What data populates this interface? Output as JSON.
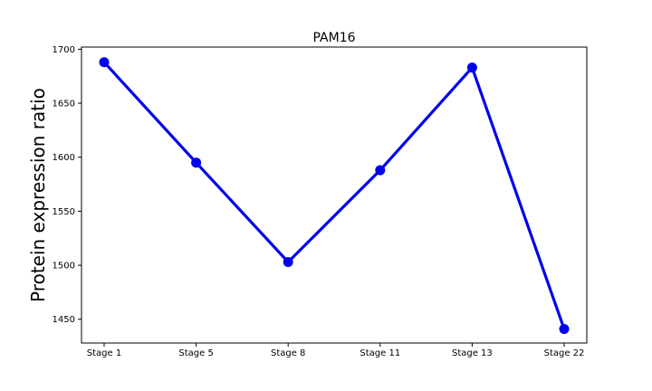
{
  "chart_data": {
    "type": "line",
    "title": "PAM16",
    "xlabel": "",
    "ylabel": "Protein expression ratio",
    "categories": [
      "Stage 1",
      "Stage 5",
      "Stage 8",
      "Stage 11",
      "Stage 13",
      "Stage 22"
    ],
    "series": [
      {
        "color": "#0000ee",
        "marker": "circle",
        "values": [
          1688,
          1595,
          1503,
          1588,
          1683,
          1441
        ]
      }
    ],
    "ylim": [
      1428,
      1702
    ],
    "yticks": [
      1450,
      1500,
      1550,
      1600,
      1650,
      1700
    ],
    "grid": false,
    "legend": "none"
  }
}
